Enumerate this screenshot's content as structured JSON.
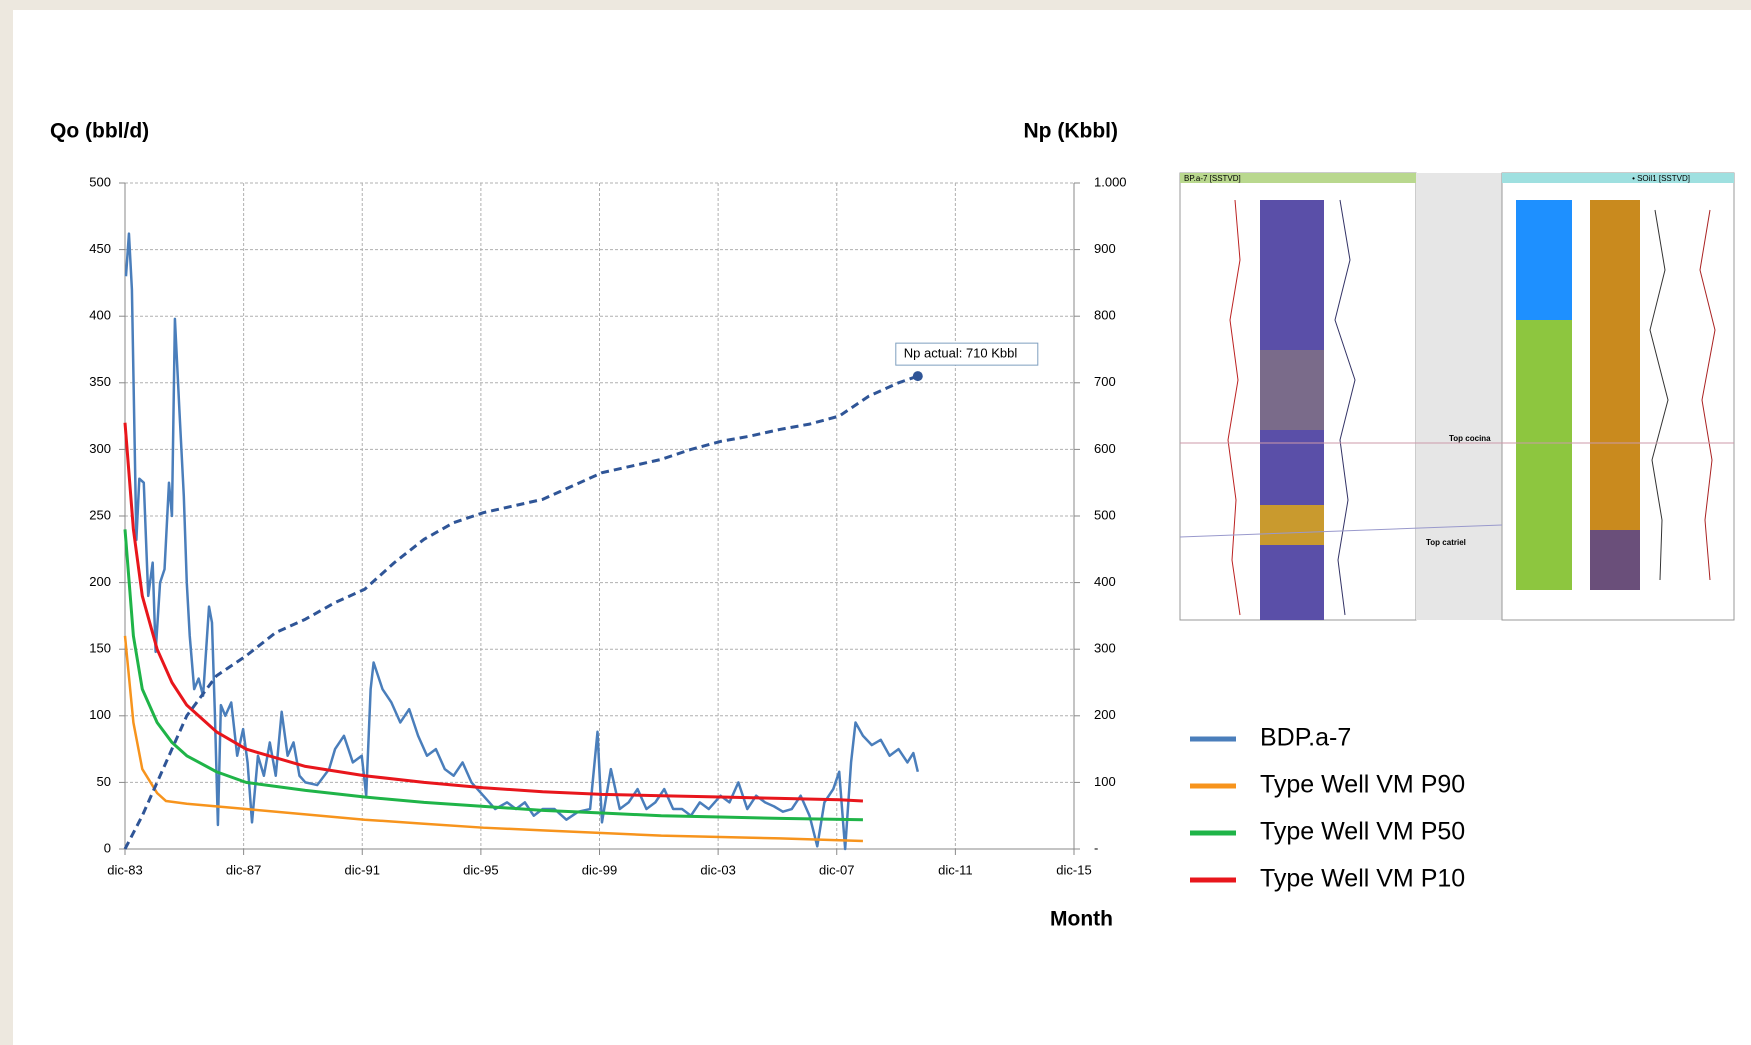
{
  "chart_data": {
    "type": "line",
    "y_label": "Qo (bbl/d)",
    "y2_label": "Np (Kbbl)",
    "x_label": "Month",
    "annotation": "Np actual: 710 Kbbl",
    "grid": true,
    "xlim": [
      1983.917,
      2015.917
    ],
    "xticks": [
      {
        "value": 1983.917,
        "label": "dic-83"
      },
      {
        "value": 1987.917,
        "label": "dic-87"
      },
      {
        "value": 1991.917,
        "label": "dic-91"
      },
      {
        "value": 1995.917,
        "label": "dic-95"
      },
      {
        "value": 1999.917,
        "label": "dic-99"
      },
      {
        "value": 2003.917,
        "label": "dic-03"
      },
      {
        "value": 2007.917,
        "label": "dic-07"
      },
      {
        "value": 2011.917,
        "label": "dic-11"
      },
      {
        "value": 2015.917,
        "label": "dic-15"
      }
    ],
    "ylim": [
      0,
      500
    ],
    "yticks": [
      0,
      50,
      100,
      150,
      200,
      250,
      300,
      350,
      400,
      450,
      500
    ],
    "y2lim": [
      0,
      1000
    ],
    "y2ticks": [
      {
        "value": 0,
        "label": "-"
      },
      100,
      200,
      300,
      400,
      500,
      600,
      700,
      800,
      900,
      {
        "value": 1000,
        "label": "1.000"
      }
    ],
    "series": [
      {
        "name": "BDP.a-7",
        "color": "#4a7ebb",
        "width": 2.5,
        "x": [
          1983.95,
          1984.05,
          1984.15,
          1984.3,
          1984.4,
          1984.55,
          1984.7,
          1984.85,
          1984.95,
          1985.1,
          1985.25,
          1985.4,
          1985.5,
          1985.6,
          1985.75,
          1985.9,
          1986.0,
          1986.1,
          1986.25,
          1986.4,
          1986.55,
          1986.75,
          1986.85,
          1986.95,
          1987.05,
          1987.15,
          1987.3,
          1987.5,
          1987.7,
          1987.9,
          1988.05,
          1988.2,
          1988.4,
          1988.6,
          1988.8,
          1989.0,
          1989.2,
          1989.4,
          1989.6,
          1989.8,
          1990.0,
          1990.4,
          1990.8,
          1991.0,
          1991.3,
          1991.6,
          1991.9,
          1992.05,
          1992.2,
          1992.3,
          1992.6,
          1992.9,
          1993.2,
          1993.5,
          1993.8,
          1994.1,
          1994.4,
          1994.7,
          1995.0,
          1995.3,
          1995.6,
          1996.0,
          1996.4,
          1996.8,
          1997.1,
          1997.4,
          1997.7,
          1998.0,
          1998.4,
          1998.8,
          1999.2,
          1999.6,
          1999.85,
          2000.0,
          2000.3,
          2000.6,
          2000.9,
          2001.2,
          2001.5,
          2001.8,
          2002.1,
          2002.4,
          2002.7,
          2003.0,
          2003.3,
          2003.6,
          2004.0,
          2004.3,
          2004.6,
          2004.9,
          2005.2,
          2005.5,
          2005.8,
          2006.1,
          2006.4,
          2006.7,
          2007.0,
          2007.26,
          2007.5,
          2007.8,
          2008.0,
          2008.2,
          2008.4,
          2008.55,
          2008.8,
          2009.1,
          2009.4,
          2009.7,
          2010.0,
          2010.3,
          2010.5,
          2010.65
        ],
        "values": [
          430,
          462,
          420,
          232,
          278,
          275,
          190,
          215,
          148,
          200,
          210,
          275,
          250,
          398,
          330,
          265,
          200,
          160,
          120,
          128,
          115,
          182,
          170,
          100,
          18,
          108,
          100,
          110,
          70,
          90,
          65,
          20,
          70,
          55,
          80,
          55,
          103,
          70,
          80,
          55,
          50,
          48,
          60,
          75,
          85,
          65,
          70,
          40,
          120,
          140,
          120,
          110,
          95,
          105,
          85,
          70,
          75,
          60,
          55,
          65,
          50,
          40,
          30,
          35,
          30,
          35,
          25,
          30,
          30,
          22,
          28,
          30,
          88,
          20,
          60,
          30,
          35,
          45,
          30,
          35,
          45,
          30,
          30,
          25,
          35,
          30,
          40,
          35,
          50,
          30,
          40,
          35,
          32,
          28,
          30,
          40,
          25,
          2,
          35,
          45,
          58,
          0,
          65,
          95,
          85,
          78,
          82,
          70,
          75,
          65,
          72,
          58
        ]
      },
      {
        "name": "Type Well VM P90",
        "color": "#f7941d",
        "width": 2.5,
        "x": [
          1983.917,
          1984.2,
          1984.5,
          1985,
          1985.3,
          1986,
          1988,
          1990,
          1992,
          1994,
          1996,
          1998,
          2000,
          2002,
          2004,
          2006,
          2008.8
        ],
        "values": [
          160,
          95,
          60,
          42,
          36,
          34,
          30,
          26,
          22,
          19,
          16,
          14,
          12,
          10,
          9,
          8,
          6
        ]
      },
      {
        "name": "Type Well VM P50",
        "color": "#1fb448",
        "width": 3,
        "x": [
          1983.917,
          1984.2,
          1984.5,
          1985,
          1985.5,
          1986,
          1987,
          1988,
          1990,
          1992,
          1994,
          1996,
          1998,
          2000,
          2002,
          2004,
          2006,
          2008.8
        ],
        "values": [
          240,
          160,
          120,
          95,
          80,
          70,
          58,
          50,
          44,
          39,
          35,
          32,
          29,
          27,
          25,
          24,
          23,
          22
        ]
      },
      {
        "name": "Type Well VM P10",
        "color": "#e8161c",
        "width": 3,
        "x": [
          1983.917,
          1984.2,
          1984.5,
          1985,
          1985.5,
          1986,
          1987,
          1988,
          1990,
          1992,
          1994,
          1996,
          1998,
          2000,
          2002,
          2004,
          2006,
          2008,
          2008.8
        ],
        "values": [
          320,
          240,
          190,
          150,
          125,
          108,
          88,
          75,
          62,
          55,
          50,
          46,
          43,
          41,
          40,
          39,
          38,
          37,
          36
        ]
      },
      {
        "axis": "y2",
        "color": "#2f5597",
        "width": 3,
        "dashed": true,
        "x": [
          1983.917,
          1984.5,
          1985,
          1986,
          1987,
          1988,
          1989,
          1990,
          1991,
          1992,
          1993,
          1994,
          1995,
          1996,
          1997,
          1998,
          1999,
          2000,
          2001,
          2002,
          2003,
          2004,
          2005,
          2006,
          2007,
          2008,
          2009,
          2010,
          2010.65
        ],
        "values": [
          0,
          50,
          100,
          200,
          260,
          290,
          325,
          345,
          370,
          390,
          430,
          465,
          490,
          505,
          515,
          525,
          545,
          565,
          575,
          585,
          600,
          612,
          620,
          630,
          638,
          650,
          680,
          700,
          710
        ]
      }
    ]
  },
  "well_logs": {
    "left_title": "BP.a-7 [SSTVD]",
    "right_title": "• SOil1 [SSTVD]",
    "top_cocina": "Top cocina",
    "top_catriel": "Top catriel"
  }
}
